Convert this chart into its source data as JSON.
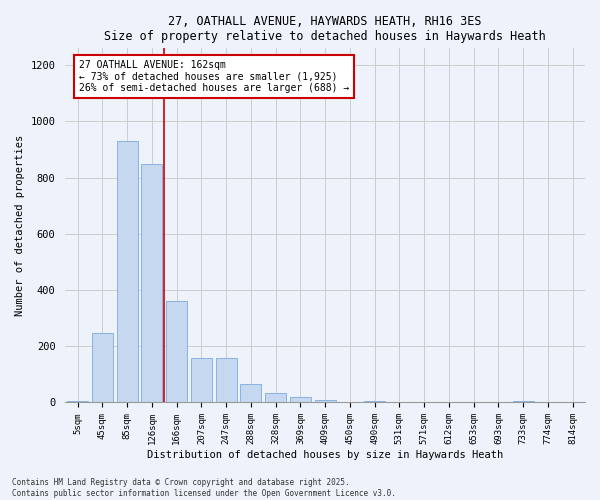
{
  "title1": "27, OATHALL AVENUE, HAYWARDS HEATH, RH16 3ES",
  "title2": "Size of property relative to detached houses in Haywards Heath",
  "xlabel": "Distribution of detached houses by size in Haywards Heath",
  "ylabel": "Number of detached properties",
  "categories": [
    "5sqm",
    "45sqm",
    "85sqm",
    "126sqm",
    "166sqm",
    "207sqm",
    "247sqm",
    "288sqm",
    "328sqm",
    "369sqm",
    "409sqm",
    "450sqm",
    "490sqm",
    "531sqm",
    "571sqm",
    "612sqm",
    "653sqm",
    "693sqm",
    "733sqm",
    "774sqm",
    "814sqm"
  ],
  "values": [
    5,
    248,
    930,
    848,
    360,
    157,
    157,
    65,
    32,
    20,
    10,
    0,
    5,
    0,
    0,
    0,
    0,
    0,
    5,
    0,
    0
  ],
  "bar_color": "#c5d8f0",
  "bar_edge_color": "#7aabe0",
  "grid_color": "#cccccc",
  "property_sqm": 162,
  "annotation_text": "27 OATHALL AVENUE: 162sqm\n← 73% of detached houses are smaller (1,925)\n26% of semi-detached houses are larger (688) →",
  "annotation_box_color": "#ffffff",
  "annotation_border_color": "#cc0000",
  "footer": "Contains HM Land Registry data © Crown copyright and database right 2025.\nContains public sector information licensed under the Open Government Licence v3.0.",
  "ylim": [
    0,
    1260
  ],
  "background_color": "#eef2fa",
  "figsize": [
    6.0,
    5.0
  ],
  "dpi": 100
}
